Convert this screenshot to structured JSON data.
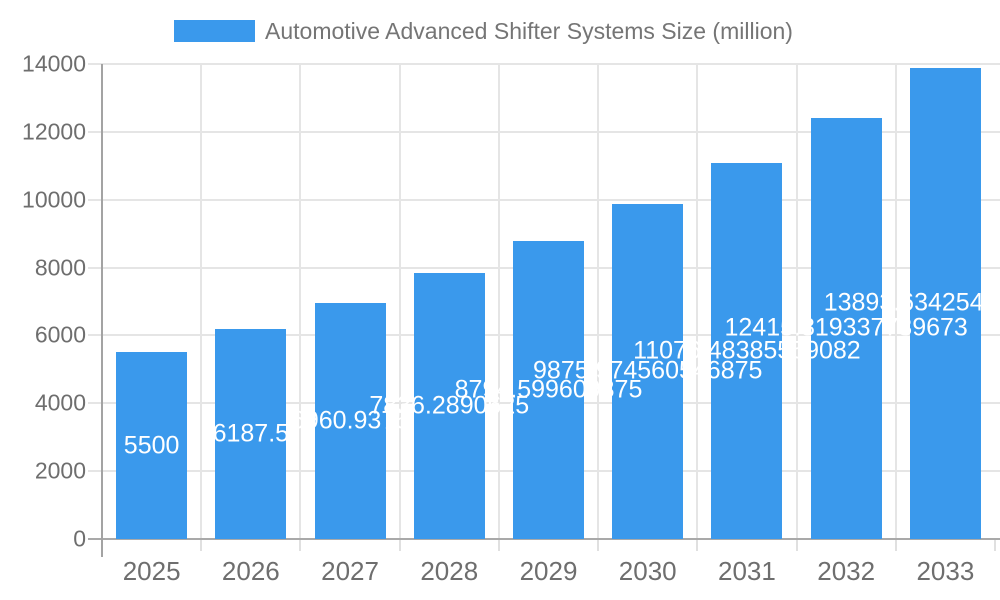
{
  "legend": {
    "label": "Automotive Advanced Shifter Systems Size (million)",
    "swatch_color": "#3a99ec"
  },
  "chart_data": {
    "type": "bar",
    "title": "Automotive Advanced Shifter Systems Size (million)",
    "categories": [
      "2025",
      "2026",
      "2027",
      "2028",
      "2029",
      "2030",
      "2031",
      "2032",
      "2033"
    ],
    "values": [
      5500,
      6187.5,
      6960.9375,
      7836.2890625,
      8794.599609375,
      9875.974560546874,
      11076.48385559082,
      12415.819337739673,
      13893.634254189674
    ],
    "labels": [
      "5500",
      "6187.5",
      "6960.9375",
      "7836.2890625",
      "8794.599609375",
      "9875.974560546875",
      "11076.48385559082",
      "12415.819337739673",
      "13893.634254189673"
    ],
    "xlabel": "",
    "ylabel": "",
    "ylim": [
      0,
      14000
    ],
    "yticks": [
      0,
      2000,
      4000,
      6000,
      8000,
      10000,
      12000,
      14000
    ],
    "grid": true,
    "legend_position": "top-center",
    "bar_color": "#3a99ec",
    "bar_label_color": "#ffffff",
    "axis_text_color": "#6e6e6e",
    "grid_color": "#e5e5e5"
  }
}
